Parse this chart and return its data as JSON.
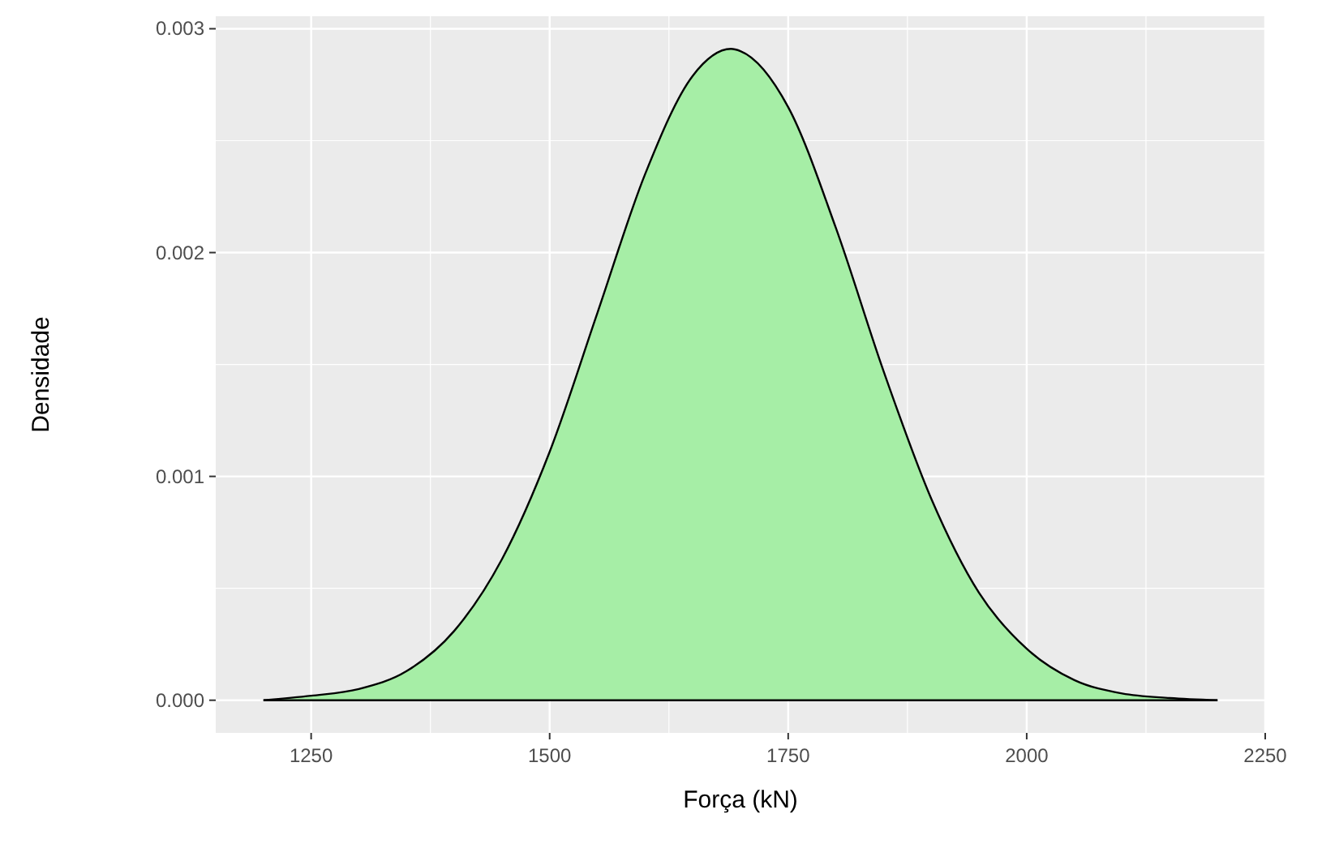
{
  "chart_data": {
    "type": "area",
    "xlabel": "Força (kN)",
    "ylabel": "Densidade",
    "x": [
      1200,
      1250,
      1300,
      1350,
      1400,
      1450,
      1500,
      1550,
      1600,
      1650,
      1690,
      1700,
      1750,
      1800,
      1850,
      1900,
      1950,
      2000,
      2050,
      2100,
      2150,
      2200
    ],
    "series": [
      {
        "color": "#a6eea6",
        "values": [
          0,
          2e-05,
          5e-05,
          0.00013,
          0.00031,
          0.00063,
          0.00111,
          0.00173,
          0.00235,
          0.00279,
          0.00291,
          0.0029,
          0.00265,
          0.00211,
          0.00147,
          0.0009,
          0.00048,
          0.00023,
          9e-05,
          3e-05,
          1e-05,
          0
        ]
      }
    ],
    "xlim": [
      1150,
      2250
    ],
    "ylim": [
      -0.000146,
      0.003056
    ],
    "xticks": [
      1250,
      1500,
      1750,
      2000,
      2250
    ],
    "yticks": [
      {
        "value": 0,
        "label": "0.000"
      },
      {
        "value": 0.001,
        "label": "0.001"
      },
      {
        "value": 0.002,
        "label": "0.002"
      },
      {
        "value": 0.003,
        "label": "0.003"
      }
    ],
    "grid": true
  }
}
